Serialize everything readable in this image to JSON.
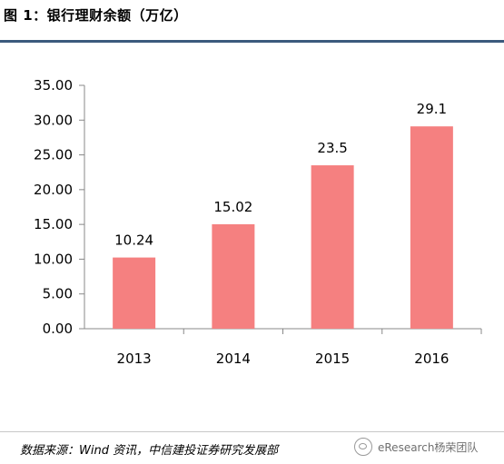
{
  "header": {
    "title": "图 1：银行理财余额（万亿）"
  },
  "footer": {
    "source": "数据来源：Wind 资讯，中信建投证券研究发展部",
    "watermark": "eResearch杨荣团队"
  },
  "colors": {
    "bar": "#f58080",
    "accent": "#3c5a7d"
  },
  "chart_data": {
    "type": "bar",
    "title": "银行理财余额（万亿）",
    "categories": [
      "2013",
      "2014",
      "2015",
      "2016"
    ],
    "values": [
      10.24,
      15.02,
      23.5,
      29.1
    ],
    "data_labels": [
      "10.24",
      "15.02",
      "23.5",
      "29.1"
    ],
    "ylim": [
      0,
      35
    ],
    "yticks": [
      0,
      5,
      10,
      15,
      20,
      25,
      30,
      35
    ],
    "ytick_labels": [
      "0.00",
      "5.00",
      "10.00",
      "15.00",
      "20.00",
      "25.00",
      "30.00",
      "35.00"
    ],
    "xlabel": "",
    "ylabel": "",
    "grid": false,
    "legend": "none"
  }
}
